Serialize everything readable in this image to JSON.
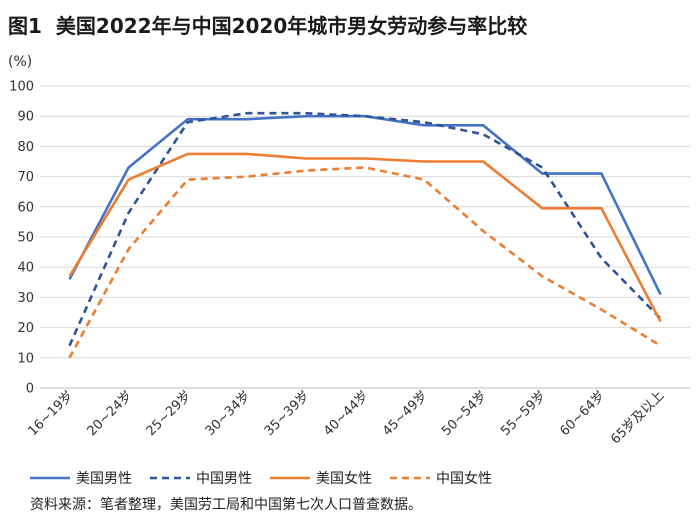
{
  "header": {
    "fig_label": "图1",
    "title": "美国2022年与中国2020年城市男女劳动参与率比较"
  },
  "source": "资料来源：笔者整理，美国劳工局和中国第七次人口普查数据。",
  "chart_data": {
    "type": "line",
    "title": "美国2022年与中国2020年城市男女劳动参与率比较",
    "ylabel": "(%)",
    "ylim": [
      0,
      100
    ],
    "yticks": [
      0,
      10,
      20,
      30,
      40,
      50,
      60,
      70,
      80,
      90,
      100
    ],
    "categories": [
      "16~19岁",
      "20~24岁",
      "25~29岁",
      "30~34岁",
      "35~39岁",
      "40~44岁",
      "45~49岁",
      "50~54岁",
      "55~59岁",
      "60~64岁",
      "65岁及以上"
    ],
    "series": [
      {
        "name": "美国男性",
        "color": "#4472C4",
        "style": "solid",
        "values": [
          36,
          73,
          89,
          89,
          90,
          90,
          87,
          87,
          71,
          71,
          31
        ]
      },
      {
        "name": "中国男性",
        "color": "#2F5597",
        "style": "dashed",
        "values": [
          14,
          58,
          88,
          91,
          91,
          90,
          88,
          84,
          73,
          43,
          23
        ]
      },
      {
        "name": "美国女性",
        "color": "#ED7D31",
        "style": "solid",
        "values": [
          37,
          69,
          77.5,
          77.5,
          76,
          76,
          75,
          75,
          59.5,
          59.5,
          22
        ]
      },
      {
        "name": "中国女性",
        "color": "#ED7D31",
        "style": "dashed",
        "values": [
          10,
          46,
          69,
          70,
          72,
          73,
          69,
          52,
          37,
          26,
          14
        ]
      }
    ]
  }
}
